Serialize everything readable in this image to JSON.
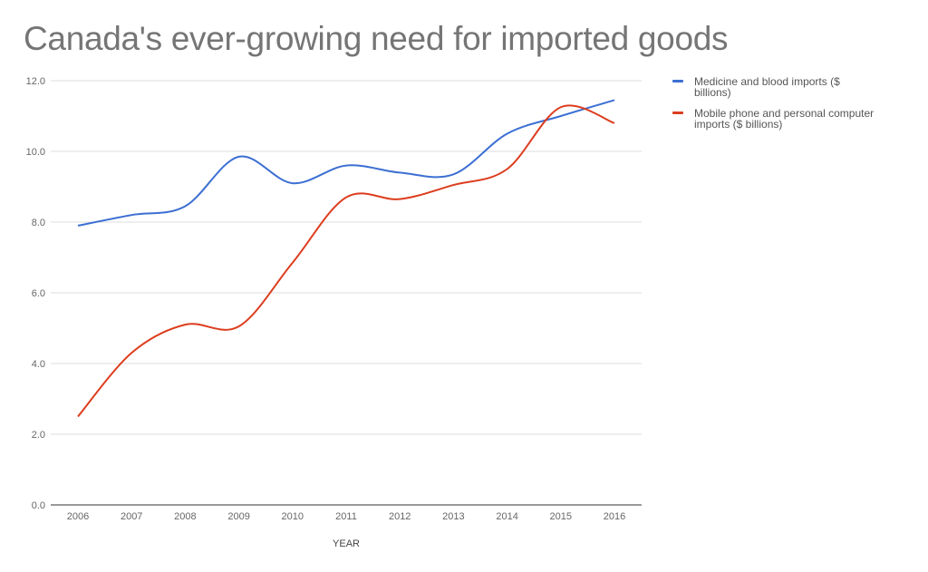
{
  "chart_data": {
    "type": "line",
    "title": "Canada's ever-growing need for imported goods",
    "xlabel": "YEAR",
    "ylabel": "",
    "categories": [
      "2006",
      "2007",
      "2008",
      "2009",
      "2010",
      "2011",
      "2012",
      "2013",
      "2014",
      "2015",
      "2016"
    ],
    "ylim": [
      0,
      12
    ],
    "yticks": [
      "0.0",
      "2.0",
      "4.0",
      "6.0",
      "8.0",
      "10.0",
      "12.0"
    ],
    "grid": true,
    "smooth": true,
    "legend_position": "right",
    "series": [
      {
        "name": "Medicine and blood imports ($ billions)",
        "legend_lines": [
          "Medicine and blood imports ($",
          "billions)"
        ],
        "color": "#3c6fd2",
        "values": [
          7.9,
          8.2,
          8.45,
          9.85,
          9.1,
          9.6,
          9.4,
          9.35,
          10.5,
          11.0,
          11.45
        ]
      },
      {
        "name": "Mobile phone and personal computer imports ($ billions)",
        "legend_lines": [
          "Mobile phone and personal computer",
          "imports ($ billions)"
        ],
        "color": "#dc3d1e",
        "values": [
          2.5,
          4.3,
          5.1,
          5.05,
          6.85,
          8.7,
          8.65,
          9.05,
          9.5,
          11.25,
          10.8
        ]
      }
    ]
  }
}
